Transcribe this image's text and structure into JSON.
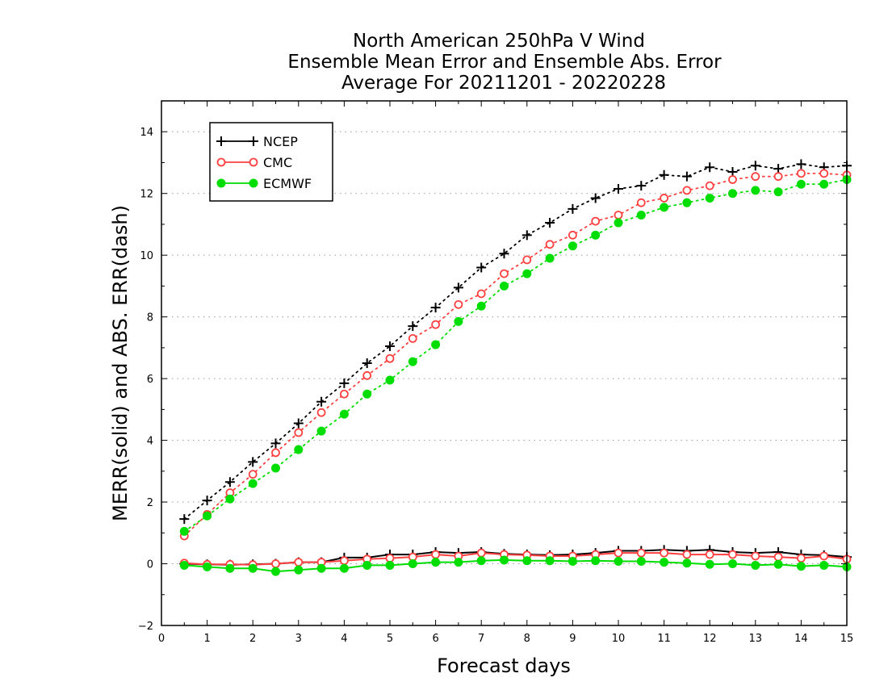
{
  "chart_data": {
    "type": "line",
    "title": [
      "North American 250hPa V Wind",
      "Ensemble Mean Error and Ensemble Abs. Error",
      "Average For 20211201 - 20220228"
    ],
    "xlabel": "Forecast days",
    "ylabel": "MERR(solid) and ABS. ERR(dash)",
    "xlim": [
      0,
      15
    ],
    "ylim": [
      -2,
      15
    ],
    "x_ticks": [
      "0",
      "1",
      "2",
      "3",
      "4",
      "5",
      "6",
      "7",
      "8",
      "9",
      "10",
      "11",
      "12",
      "13",
      "14",
      "15"
    ],
    "y_ticks": [
      "-2",
      "0",
      "2",
      "4",
      "6",
      "8",
      "10",
      "12",
      "14"
    ],
    "grid": "horizontal dotted",
    "legend_position": "top-left",
    "x": [
      0.5,
      1,
      1.5,
      2,
      2.5,
      3,
      3.5,
      4,
      4.5,
      5,
      5.5,
      6,
      6.5,
      7,
      7.5,
      8,
      8.5,
      9,
      9.5,
      10,
      10.5,
      11,
      11.5,
      12,
      12.5,
      13,
      13.5,
      14,
      14.5,
      15
    ],
    "series": [
      {
        "name": "NCEP",
        "color": "#000000",
        "marker": "plus",
        "abs_err": [
          1.45,
          2.05,
          2.65,
          3.3,
          3.9,
          4.55,
          5.25,
          5.85,
          6.5,
          7.05,
          7.7,
          8.3,
          8.95,
          9.6,
          10.05,
          10.65,
          11.05,
          11.5,
          11.85,
          12.15,
          12.25,
          12.6,
          12.55,
          12.85,
          12.7,
          12.9,
          12.8,
          12.95,
          12.85,
          12.9
        ],
        "mean_err": [
          0.0,
          -0.02,
          -0.03,
          -0.02,
          0.0,
          0.05,
          0.05,
          0.2,
          0.2,
          0.3,
          0.3,
          0.38,
          0.35,
          0.38,
          0.32,
          0.3,
          0.28,
          0.3,
          0.35,
          0.42,
          0.42,
          0.45,
          0.42,
          0.45,
          0.38,
          0.35,
          0.38,
          0.3,
          0.28,
          0.22
        ]
      },
      {
        "name": "CMC",
        "color": "#ff4040",
        "marker": "open-circle",
        "abs_err": [
          0.9,
          1.6,
          2.3,
          2.9,
          3.6,
          4.25,
          4.9,
          5.5,
          6.1,
          6.65,
          7.3,
          7.75,
          8.4,
          8.75,
          9.4,
          9.85,
          10.35,
          10.65,
          11.1,
          11.3,
          11.7,
          11.85,
          12.1,
          12.25,
          12.45,
          12.55,
          12.55,
          12.65,
          12.65,
          12.6
        ],
        "mean_err": [
          0.02,
          -0.02,
          -0.02,
          -0.03,
          0.0,
          0.05,
          0.05,
          0.1,
          0.15,
          0.18,
          0.22,
          0.3,
          0.25,
          0.35,
          0.3,
          0.28,
          0.25,
          0.25,
          0.3,
          0.35,
          0.35,
          0.35,
          0.3,
          0.3,
          0.3,
          0.25,
          0.22,
          0.18,
          0.25,
          0.15
        ]
      },
      {
        "name": "ECMWF",
        "color": "#00dd00",
        "marker": "filled-circle",
        "abs_err": [
          1.05,
          1.55,
          2.1,
          2.6,
          3.1,
          3.7,
          4.3,
          4.85,
          5.5,
          5.95,
          6.55,
          7.1,
          7.85,
          8.35,
          9.0,
          9.4,
          9.9,
          10.3,
          10.65,
          11.05,
          11.3,
          11.55,
          11.7,
          11.85,
          12.0,
          12.1,
          12.05,
          12.3,
          12.3,
          12.45
        ],
        "mean_err": [
          -0.05,
          -0.1,
          -0.15,
          -0.15,
          -0.25,
          -0.2,
          -0.15,
          -0.15,
          -0.05,
          -0.05,
          0.0,
          0.05,
          0.05,
          0.1,
          0.12,
          0.1,
          0.1,
          0.08,
          0.1,
          0.08,
          0.08,
          0.05,
          0.02,
          -0.02,
          0.0,
          -0.05,
          -0.02,
          -0.08,
          -0.05,
          -0.1
        ]
      }
    ]
  }
}
